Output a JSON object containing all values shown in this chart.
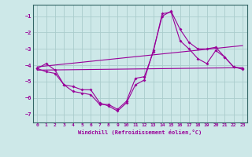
{
  "xlabel": "Windchill (Refroidissement éolien,°C)",
  "background_color": "#cde8e8",
  "grid_color": "#aacccc",
  "line_color": "#990099",
  "spine_color": "#336666",
  "xlim": [
    -0.5,
    23.5
  ],
  "ylim": [
    -7.5,
    -0.3
  ],
  "yticks": [
    -1,
    -2,
    -3,
    -4,
    -5,
    -6,
    -7
  ],
  "xticks": [
    0,
    1,
    2,
    3,
    4,
    5,
    6,
    7,
    8,
    9,
    10,
    11,
    12,
    13,
    14,
    15,
    16,
    17,
    18,
    19,
    20,
    21,
    22,
    23
  ],
  "series": [
    {
      "x": [
        0,
        1,
        2,
        3,
        4,
        5,
        6,
        7,
        8,
        9,
        10,
        11,
        12,
        13,
        14,
        15,
        16,
        17,
        18,
        19,
        20,
        21,
        22,
        23
      ],
      "y": [
        -4.2,
        -3.9,
        -4.3,
        -5.2,
        -5.3,
        -5.5,
        -5.5,
        -6.3,
        -6.5,
        -6.8,
        -6.3,
        -5.2,
        -4.9,
        -3.1,
        -1.0,
        -0.7,
        -1.8,
        -2.6,
        -3.0,
        -3.0,
        -2.9,
        -3.5,
        -4.1,
        -4.2
      ]
    },
    {
      "x": [
        0,
        1,
        2,
        3,
        4,
        5,
        6,
        7,
        8,
        9,
        10,
        11,
        12,
        13,
        14,
        15,
        16,
        17,
        18,
        19,
        20,
        21,
        22,
        23
      ],
      "y": [
        -4.2,
        -4.4,
        -4.5,
        -5.2,
        -5.6,
        -5.7,
        -5.8,
        -6.4,
        -6.4,
        -6.7,
        -6.2,
        -4.8,
        -4.7,
        -3.2,
        -0.85,
        -0.75,
        -2.5,
        -3.0,
        -3.6,
        -3.9,
        -3.1,
        -3.5,
        -4.1,
        -4.25
      ]
    },
    {
      "x": [
        0,
        23
      ],
      "y": [
        -4.1,
        -2.8
      ]
    },
    {
      "x": [
        0,
        23
      ],
      "y": [
        -4.3,
        -4.15
      ]
    }
  ]
}
